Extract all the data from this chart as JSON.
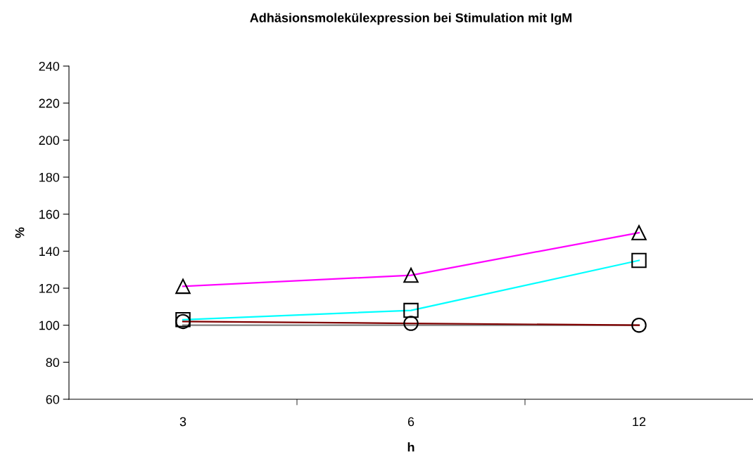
{
  "chart_data": {
    "type": "line",
    "title": "Adhäsionsmolekülexpression bei Stimulation mit IgM",
    "xlabel": "h",
    "ylabel": "%",
    "categories": [
      "3",
      "6",
      "12"
    ],
    "series": [
      {
        "color": "#808080",
        "values": [
          100,
          100,
          100
        ],
        "marker": "none"
      },
      {
        "color": "#ff00ff",
        "values": [
          121,
          127,
          150
        ],
        "marker": "triangle"
      },
      {
        "color": "#00ffff",
        "values": [
          103,
          108,
          135
        ],
        "marker": "square"
      },
      {
        "color": "#800000",
        "values": [
          102,
          101,
          100
        ],
        "marker": "circle"
      }
    ],
    "ylim": [
      60,
      240
    ],
    "yticks": [
      60,
      80,
      100,
      120,
      140,
      160,
      180,
      200,
      220,
      240
    ],
    "grid": false,
    "legend": false
  }
}
